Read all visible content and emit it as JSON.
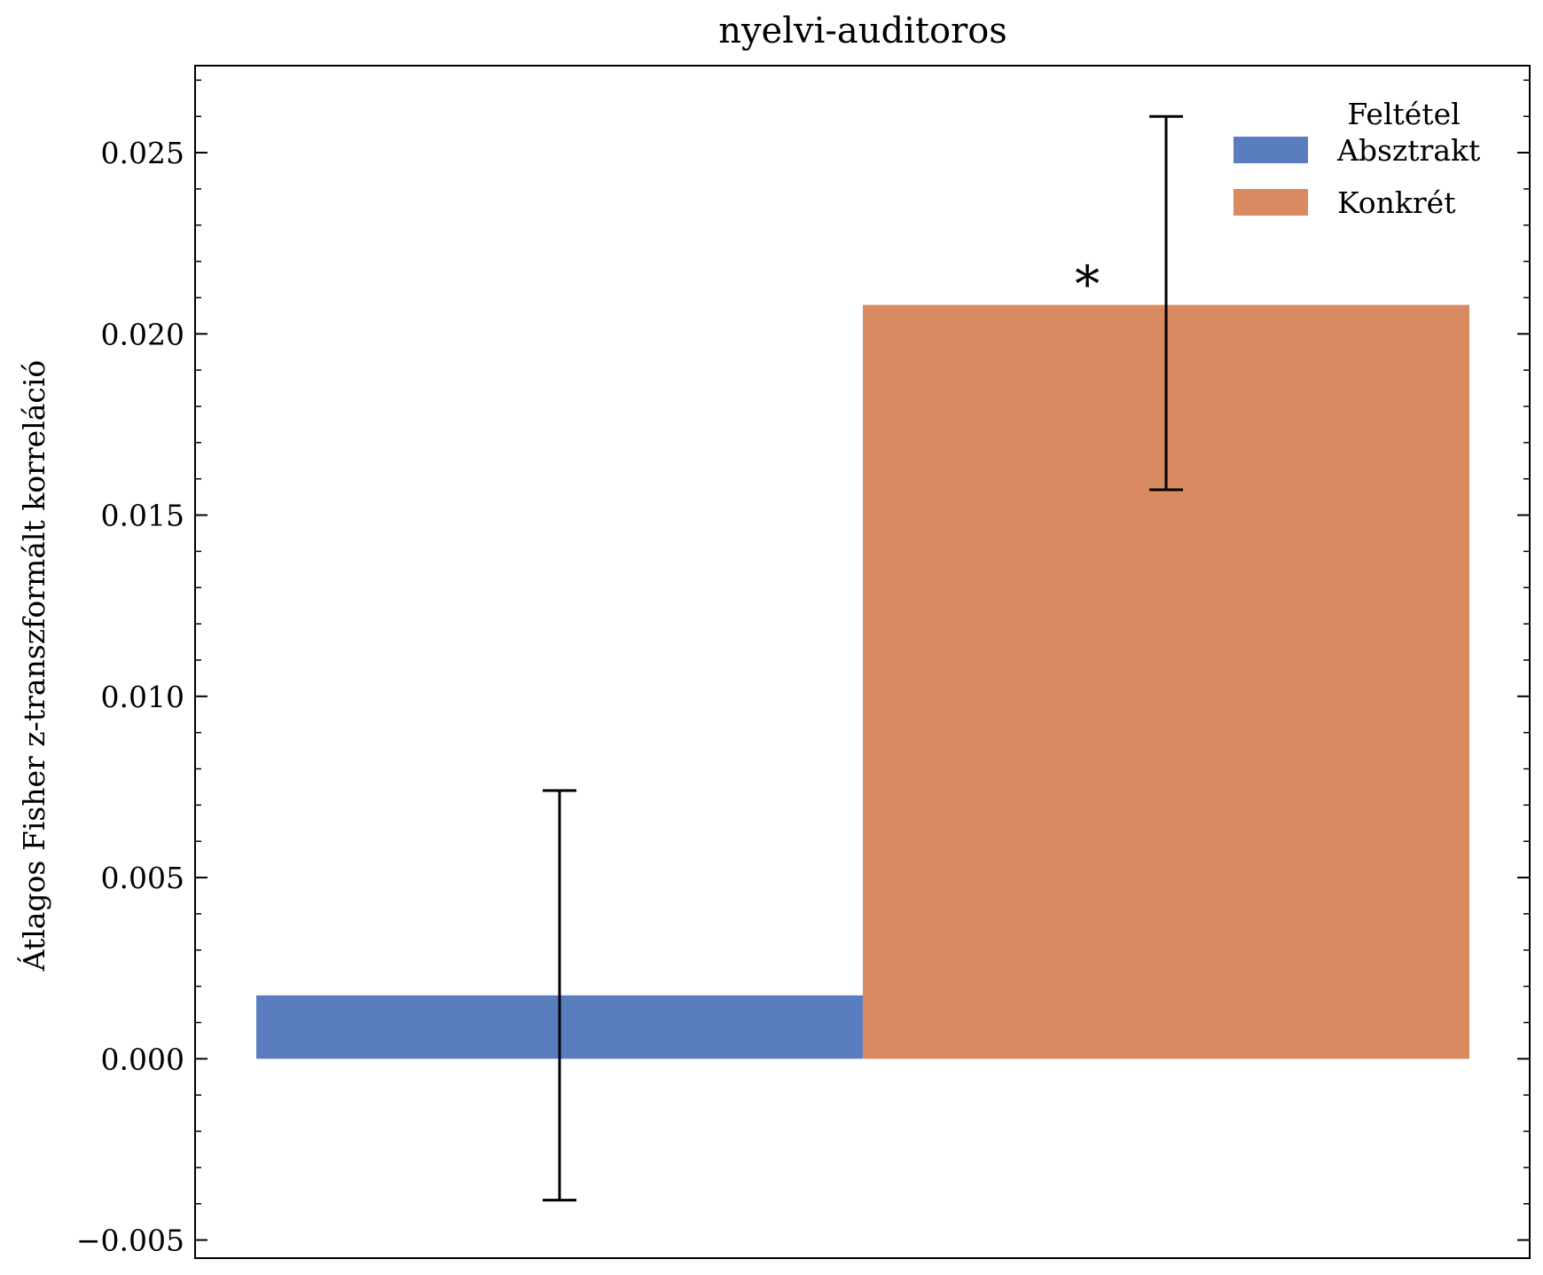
{
  "chart_data": {
    "type": "bar",
    "title": "nyelvi-auditoros",
    "xlabel": "",
    "ylabel": "Átlagos Fisher z-transzformált korreláció",
    "ylim": [
      -0.0055,
      0.0274
    ],
    "yticks": [
      -0.005,
      0.0,
      0.005,
      0.01,
      0.015,
      0.02,
      0.025
    ],
    "ytick_labels": [
      "−0.005",
      "0.000",
      "0.005",
      "0.010",
      "0.015",
      "0.020",
      "0.025"
    ],
    "grid": false,
    "legend": {
      "title": "Feltétel",
      "placement": "top-right"
    },
    "series": [
      {
        "name": "Absztrakt",
        "color": "#5a7dbf",
        "value": 0.00175,
        "error_low": -0.0039,
        "error_high": 0.0074
      },
      {
        "name": "Konkrét",
        "color": "#d98a60",
        "value": 0.0208,
        "error_low": 0.0157,
        "error_high": 0.026
      }
    ],
    "annotations": [
      {
        "text": "*",
        "series_index": 1,
        "y": 0.0208
      }
    ]
  }
}
